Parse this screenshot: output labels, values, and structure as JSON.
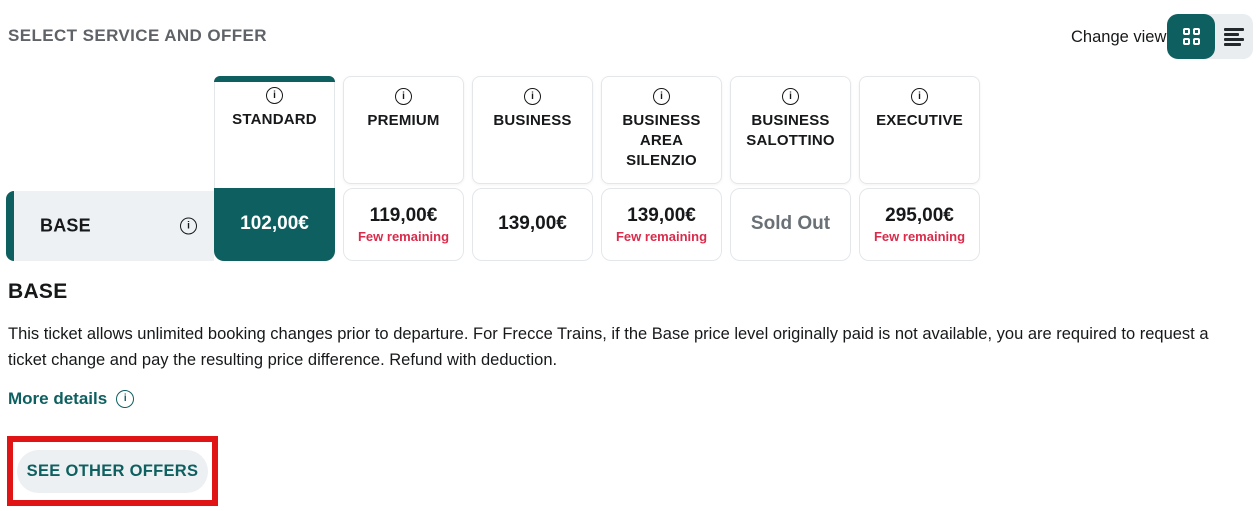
{
  "header": {
    "title": "SELECT SERVICE AND OFFER",
    "change_view": "Change view",
    "view_mode_active": "grid"
  },
  "services": [
    {
      "label": "STANDARD",
      "selected": true
    },
    {
      "label": "PREMIUM",
      "selected": false
    },
    {
      "label": "BUSINESS",
      "selected": false
    },
    {
      "label": "BUSINESS AREA SILENZIO",
      "selected": false
    },
    {
      "label": "BUSINESS SALOTTINO",
      "selected": false
    },
    {
      "label": "EXECUTIVE",
      "selected": false
    }
  ],
  "offer": {
    "name": "BASE",
    "prices": [
      {
        "service": "STANDARD",
        "price": "102,00€",
        "note": "",
        "selected": true,
        "sold_out": false
      },
      {
        "service": "PREMIUM",
        "price": "119,00€",
        "note": "Few remaining",
        "selected": false,
        "sold_out": false
      },
      {
        "service": "BUSINESS",
        "price": "139,00€",
        "note": "",
        "selected": false,
        "sold_out": false
      },
      {
        "service": "BUSINESS AREA SILENZIO",
        "price": "139,00€",
        "note": "Few remaining",
        "selected": false,
        "sold_out": false
      },
      {
        "service": "BUSINESS SALOTTINO",
        "price": "Sold Out",
        "note": "",
        "selected": false,
        "sold_out": true
      },
      {
        "service": "EXECUTIVE",
        "price": "295,00€",
        "note": "Few remaining",
        "selected": false,
        "sold_out": false
      }
    ]
  },
  "details": {
    "heading": "BASE",
    "description": "This ticket allows unlimited booking changes prior to departure. For Frecce Trains, if the Base price level originally paid is not available, you are required to request a ticket change and pay the resulting price difference. Refund with deduction.",
    "more_details": "More details"
  },
  "actions": {
    "see_other_offers": "SEE OTHER OFFERS"
  },
  "colors": {
    "teal": "#0e5f5f",
    "note_red": "#d92b4b",
    "highlight_red": "#e01414",
    "row_bg": "#eef1f4",
    "sold_out_gray": "#697076",
    "title_gray": "#5f6368"
  }
}
